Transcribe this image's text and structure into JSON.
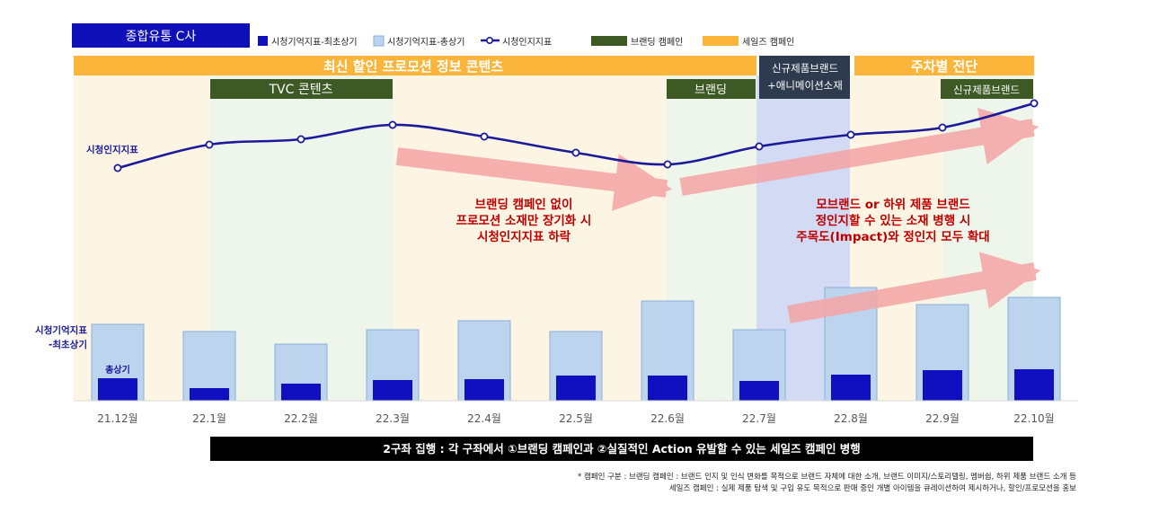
{
  "title_badge": "종합유통 C사",
  "legend": {
    "min_recall": "시청기억지표-최초상기",
    "total_recall": "시청기억지표-총상기",
    "awareness": "시청인지지표",
    "branding": "브랜딩 캠페인",
    "sales": "세일즈 캠페인"
  },
  "campaign_labels": {
    "sales_main": "최신 할인 프로모션 정보 콘텐츠",
    "new_product_anim": "신규제품브랜드\n+애니메이션소재",
    "weekly_slot": "주차별 전단",
    "tvc": "TVC 콘텐츠",
    "branding": "브랜딩",
    "new_product_brand": "신규제품브랜드"
  },
  "axis_labels": {
    "awareness": "시청인지지표",
    "recall_line1": "시청기억지표",
    "recall_line2": "-최초상기",
    "total": "총상기"
  },
  "annotations": {
    "left": [
      "브랜딩 캠페인 없이",
      "프로모션 소재만 장기화 시",
      "시청인지지표 하락"
    ],
    "right": [
      "모브랜드 or 하위 제품 브랜드",
      "정인지할 수 있는 소재 병행 시",
      "주목도(Impact)와 정인지 모두 확대"
    ]
  },
  "banner": "2구좌 집행 : 각 구좌에서 ①브랜딩 캠페인과 ②실질적인 Action 유발할 수 있는 세일즈 캠페인 병행",
  "footnote": {
    "line1": "* 캠페인 구분 : 브랜딩 캠페인 : 브랜드 인지 및 인식 변화를 목적으로 브랜드 자체에 대한 소개, 브랜드 이미지/스토리텔링, 멤버쉽, 하위 제품 브랜드 소개 등",
    "line2": "세일즈 캠페인 : 실제 제품 탐색 및 구입 유도 목적으로 판매 중인 개별 아이템을 큐레이션하여 제시하거나, 할인/프로모션을 홍보"
  },
  "colors": {
    "badge": "#1010b8",
    "min_bar": "#1010c0",
    "total_bar": "#bdd4ee",
    "total_bar_border": "#8aaedb",
    "line": "#1a1a9a",
    "branding": "#3d5a25",
    "sales": "#fbb53a",
    "new_product": "#2e3b4e",
    "annotation_text": "#c00000",
    "arrow": "#f4a5a5",
    "bg_sales": "#fdf5e4",
    "bg_branding": "#eef5ea",
    "bg_new": "#d3daf3"
  },
  "chart_data": {
    "type": "bar+line",
    "categories": [
      "21.12월",
      "22.1월",
      "22.2월",
      "22.3월",
      "22.4월",
      "22.5월",
      "22.6월",
      "22.7월",
      "22.8월",
      "22.9월",
      "22.10월"
    ],
    "series": [
      {
        "name": "시청기억지표-총상기",
        "type": "bar",
        "values": [
          85,
          77,
          63,
          79,
          89,
          77,
          111,
          79,
          126,
          107,
          115
        ]
      },
      {
        "name": "시청기억지표-최초상기",
        "type": "bar",
        "values": [
          25,
          14,
          19,
          23,
          24,
          28,
          28,
          22,
          29,
          34,
          35
        ]
      },
      {
        "name": "시청인지지표",
        "type": "line",
        "values": [
          48,
          74,
          80,
          96,
          83,
          65,
          52,
          72,
          85,
          93,
          120
        ]
      }
    ],
    "ylim": [
      0,
      140
    ]
  }
}
